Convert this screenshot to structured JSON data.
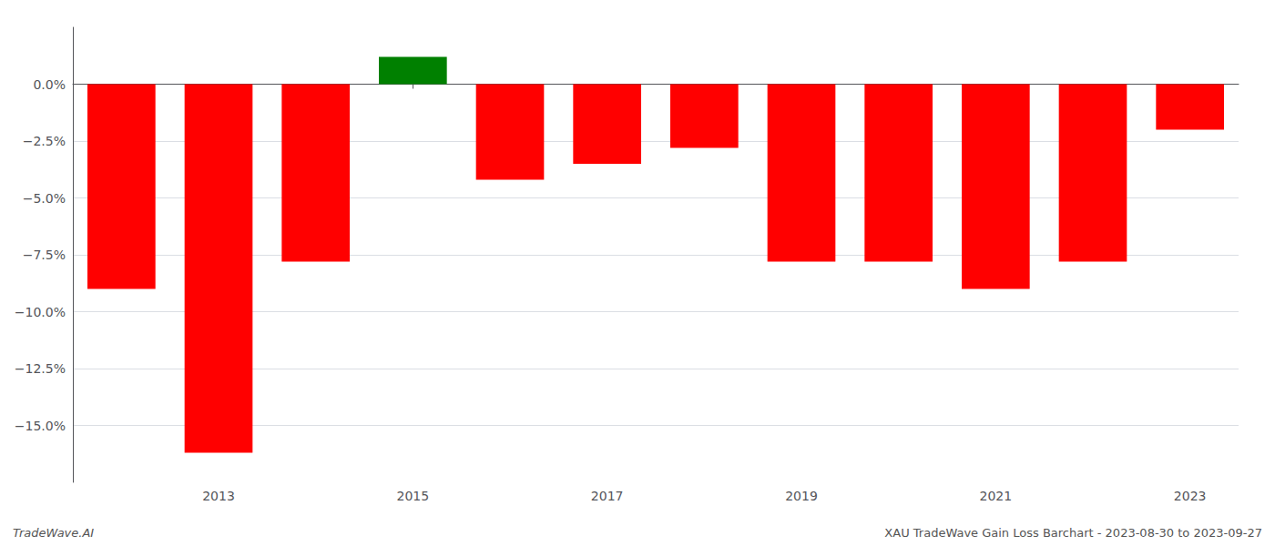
{
  "chart_data": {
    "type": "bar",
    "categories": [
      null,
      "2013",
      null,
      "2015",
      null,
      "2017",
      null,
      "2019",
      null,
      "2021",
      null,
      "2023"
    ],
    "values": [
      -9.0,
      -16.2,
      -7.8,
      1.2,
      -4.2,
      -3.5,
      -2.8,
      -7.8,
      -7.8,
      -9.0,
      -7.8,
      -2.0
    ],
    "colors": [
      "#ff0000",
      "#ff0000",
      "#ff0000",
      "#008000",
      "#ff0000",
      "#ff0000",
      "#ff0000",
      "#ff0000",
      "#ff0000",
      "#ff0000",
      "#ff0000",
      "#ff0000"
    ],
    "ylim": [
      -17.5,
      2.5
    ],
    "yticks": [
      {
        "value": 0.0,
        "label": "0.0%"
      },
      {
        "value": -2.5,
        "label": "−2.5%"
      },
      {
        "value": -5.0,
        "label": "−5.0%"
      },
      {
        "value": -7.5,
        "label": "−7.5%"
      },
      {
        "value": -10.0,
        "label": "−10.0%"
      },
      {
        "value": -12.5,
        "label": "−12.5%"
      },
      {
        "value": -15.0,
        "label": "−15.0%"
      }
    ],
    "grid": true,
    "annotations": [
      "TradeWave.AI",
      "XAU TradeWave Gain Loss Barchart - 2023-08-30 to 2023-09-27"
    ]
  }
}
